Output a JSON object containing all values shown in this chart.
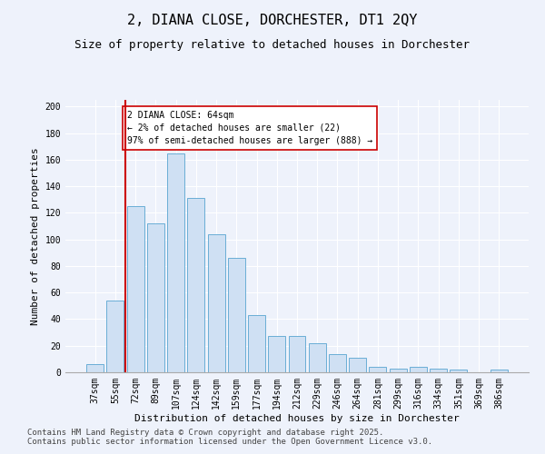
{
  "title": "2, DIANA CLOSE, DORCHESTER, DT1 2QY",
  "subtitle": "Size of property relative to detached houses in Dorchester",
  "xlabel": "Distribution of detached houses by size in Dorchester",
  "ylabel": "Number of detached properties",
  "categories": [
    "37sqm",
    "55sqm",
    "72sqm",
    "89sqm",
    "107sqm",
    "124sqm",
    "142sqm",
    "159sqm",
    "177sqm",
    "194sqm",
    "212sqm",
    "229sqm",
    "246sqm",
    "264sqm",
    "281sqm",
    "299sqm",
    "316sqm",
    "334sqm",
    "351sqm",
    "369sqm",
    "386sqm"
  ],
  "values": [
    6,
    54,
    125,
    112,
    165,
    131,
    104,
    86,
    43,
    27,
    27,
    22,
    14,
    11,
    4,
    3,
    4,
    3,
    2,
    0,
    2
  ],
  "bar_color": "#cfe0f3",
  "bar_edge_color": "#6aaed6",
  "vline_x": 1.5,
  "vline_color": "#cc0000",
  "annotation_text": "2 DIANA CLOSE: 64sqm\n← 2% of detached houses are smaller (22)\n97% of semi-detached houses are larger (888) →",
  "annotation_box_color": "#ffffff",
  "annotation_box_edge": "#cc0000",
  "ylim": [
    0,
    205
  ],
  "yticks": [
    0,
    20,
    40,
    60,
    80,
    100,
    120,
    140,
    160,
    180,
    200
  ],
  "bg_color": "#eef2fb",
  "plot_bg_color": "#eef2fb",
  "footer_line1": "Contains HM Land Registry data © Crown copyright and database right 2025.",
  "footer_line2": "Contains public sector information licensed under the Open Government Licence v3.0.",
  "title_fontsize": 11,
  "subtitle_fontsize": 9,
  "axis_label_fontsize": 8,
  "tick_fontsize": 7,
  "annotation_fontsize": 7,
  "footer_fontsize": 6.5
}
